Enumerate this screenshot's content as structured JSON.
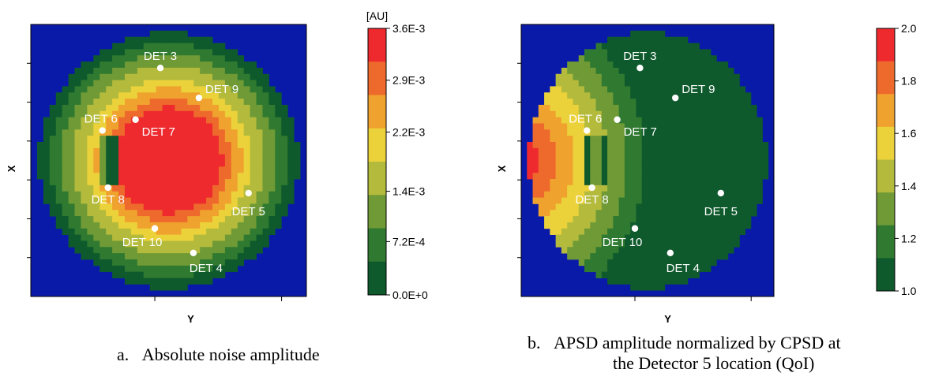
{
  "chart_data": [
    {
      "type": "heatmap",
      "panel_label": "a.",
      "caption": "Absolute noise amplitude",
      "xlabel": "Y",
      "ylabel": "X",
      "colorbar": {
        "unit": "[AU]",
        "range": [
          0.0,
          0.0036
        ],
        "ticks": [
          "3.6E-3",
          "2.9E-3",
          "2.2E-3",
          "1.4E-3",
          "7.2E-4",
          "0.0E+0"
        ],
        "tick_values": [
          0.0036,
          0.0029,
          0.0022,
          0.0014,
          0.00072,
          0.0
        ]
      },
      "field_model": "radial",
      "detectors": [
        {
          "label": "DET 3",
          "y": 0.47,
          "x": 0.84
        },
        {
          "label": "DET 9",
          "y": 0.61,
          "x": 0.73
        },
        {
          "label": "DET 6",
          "y": 0.26,
          "x": 0.61
        },
        {
          "label": "DET 7",
          "y": 0.38,
          "x": 0.65
        },
        {
          "label": "DET 8",
          "y": 0.28,
          "x": 0.4
        },
        {
          "label": "DET 5",
          "y": 0.79,
          "x": 0.38
        },
        {
          "label": "DET 10",
          "y": 0.45,
          "x": 0.25
        },
        {
          "label": "DET 4",
          "y": 0.59,
          "x": 0.16
        }
      ]
    },
    {
      "type": "heatmap",
      "panel_label": "b.",
      "caption_line1": "APSD amplitude normalized by CPSD at",
      "caption_line2": "the Detector 5 location (QoI)",
      "xlabel": "Y",
      "ylabel": "X",
      "colorbar": {
        "unit": "",
        "range": [
          1.0,
          2.0
        ],
        "ticks": [
          "2.0",
          "1.8",
          "1.6",
          "1.4",
          "1.2",
          "1.0"
        ],
        "tick_values": [
          2.0,
          1.8,
          1.6,
          1.4,
          1.2,
          1.0
        ]
      },
      "field_model": "left-gradient",
      "detectors": [
        {
          "label": "DET 3",
          "y": 0.47,
          "x": 0.84
        },
        {
          "label": "DET 9",
          "y": 0.61,
          "x": 0.73
        },
        {
          "label": "DET 6",
          "y": 0.26,
          "x": 0.61
        },
        {
          "label": "DET 7",
          "y": 0.38,
          "x": 0.65
        },
        {
          "label": "DET 8",
          "y": 0.28,
          "x": 0.4
        },
        {
          "label": "DET 5",
          "y": 0.79,
          "x": 0.38
        },
        {
          "label": "DET 10",
          "y": 0.45,
          "x": 0.25
        },
        {
          "label": "DET 4",
          "y": 0.59,
          "x": 0.16
        }
      ]
    }
  ],
  "colors": {
    "outside": "#0a1aa8",
    "scale": [
      "#0e5a2c",
      "#2f7a30",
      "#6f9a36",
      "#b4bb3c",
      "#ecd23a",
      "#f0a22e",
      "#ee6a2c",
      "#ee2a2e"
    ],
    "marker": "#ffffff"
  }
}
